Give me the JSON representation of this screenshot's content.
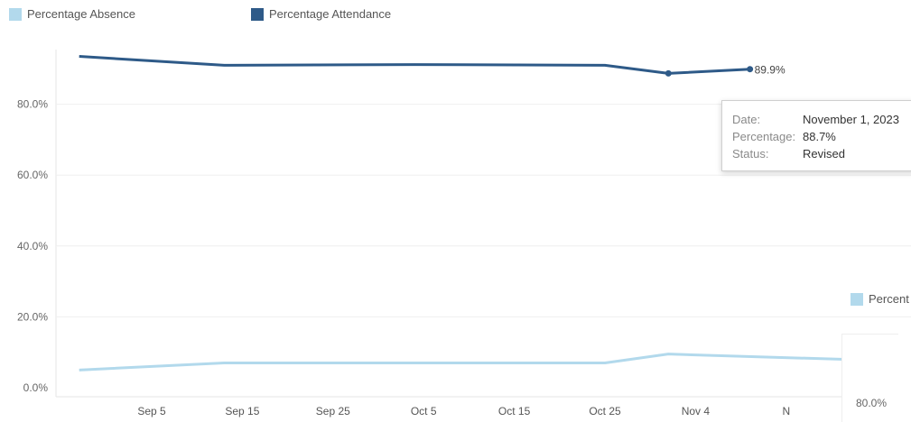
{
  "legend": {
    "items": [
      {
        "label": "Percentage Absence",
        "color": "#b2d9ec"
      },
      {
        "label": "Percentage Attendance",
        "color": "#2e5a88"
      }
    ]
  },
  "chart_data": {
    "type": "line",
    "xlabel": "",
    "ylabel": "",
    "ylim": [
      0,
      100
    ],
    "y_ticks": [
      "0.0%",
      "20.0%",
      "40.0%",
      "60.0%",
      "80.0%"
    ],
    "x_ticks": [
      "Sep 5",
      "Sep 15",
      "Sep 25",
      "Oct 5",
      "Oct 15",
      "Oct 25",
      "Nov 4",
      "N"
    ],
    "x": [
      "2023-08-28",
      "2023-09-13",
      "2023-10-04",
      "2023-10-25",
      "2023-11-01",
      "2023-11-10"
    ],
    "series": [
      {
        "name": "Percentage Attendance",
        "color": "#2e5a88",
        "values": [
          93.5,
          91.0,
          91.2,
          91.0,
          88.7,
          89.9
        ],
        "end_label": "89.9%"
      },
      {
        "name": "Percentage Absence",
        "color": "#b2d9ec",
        "values": [
          5.0,
          7.0,
          7.0,
          7.0,
          9.5,
          8.0
        ]
      }
    ],
    "grid": "horizontal"
  },
  "tooltip": {
    "rows": [
      {
        "key": "Date:",
        "value": "November 1, 2023"
      },
      {
        "key": "Percentage:",
        "value": "88.7%"
      },
      {
        "key": "Status:",
        "value": "Revised"
      }
    ]
  },
  "side": {
    "legend_label": "Percent",
    "tick_label": "80.0%"
  }
}
